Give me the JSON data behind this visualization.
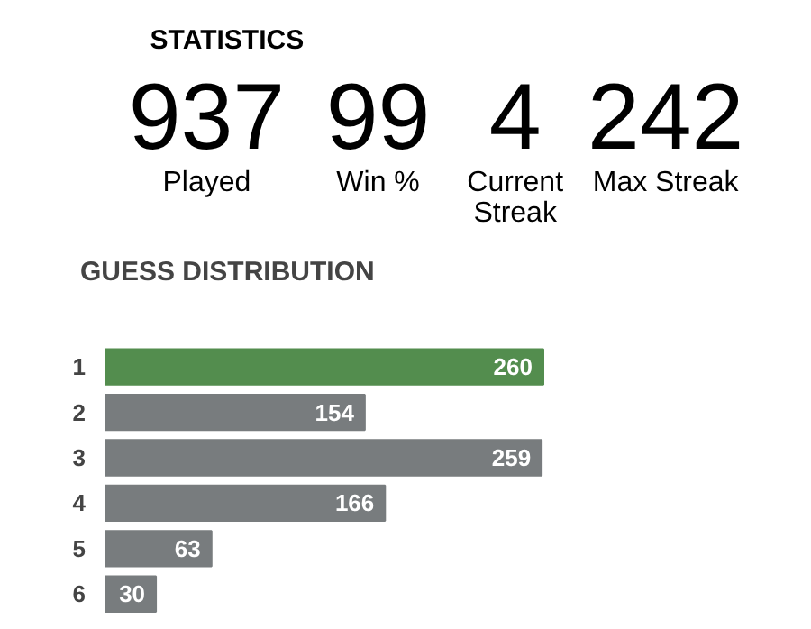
{
  "chart_data": [
    {
      "type": "other",
      "title": "STATISTICS",
      "annotations": [
        "937",
        "Played",
        "99",
        "Win %",
        "4",
        "Current Streak",
        "242",
        "Max Streak"
      ]
    },
    {
      "type": "bar",
      "title": "GUESS DISTRIBUTION",
      "orientation": "horizontal",
      "categories": [
        "1",
        "2",
        "3",
        "4",
        "5",
        "6"
      ],
      "values": [
        260,
        154,
        259,
        166,
        63,
        30
      ],
      "colors": [
        "#538d4e",
        "#787c7e",
        "#787c7e",
        "#787c7e",
        "#787c7e",
        "#787c7e"
      ],
      "data_labels": true
    }
  ]
}
